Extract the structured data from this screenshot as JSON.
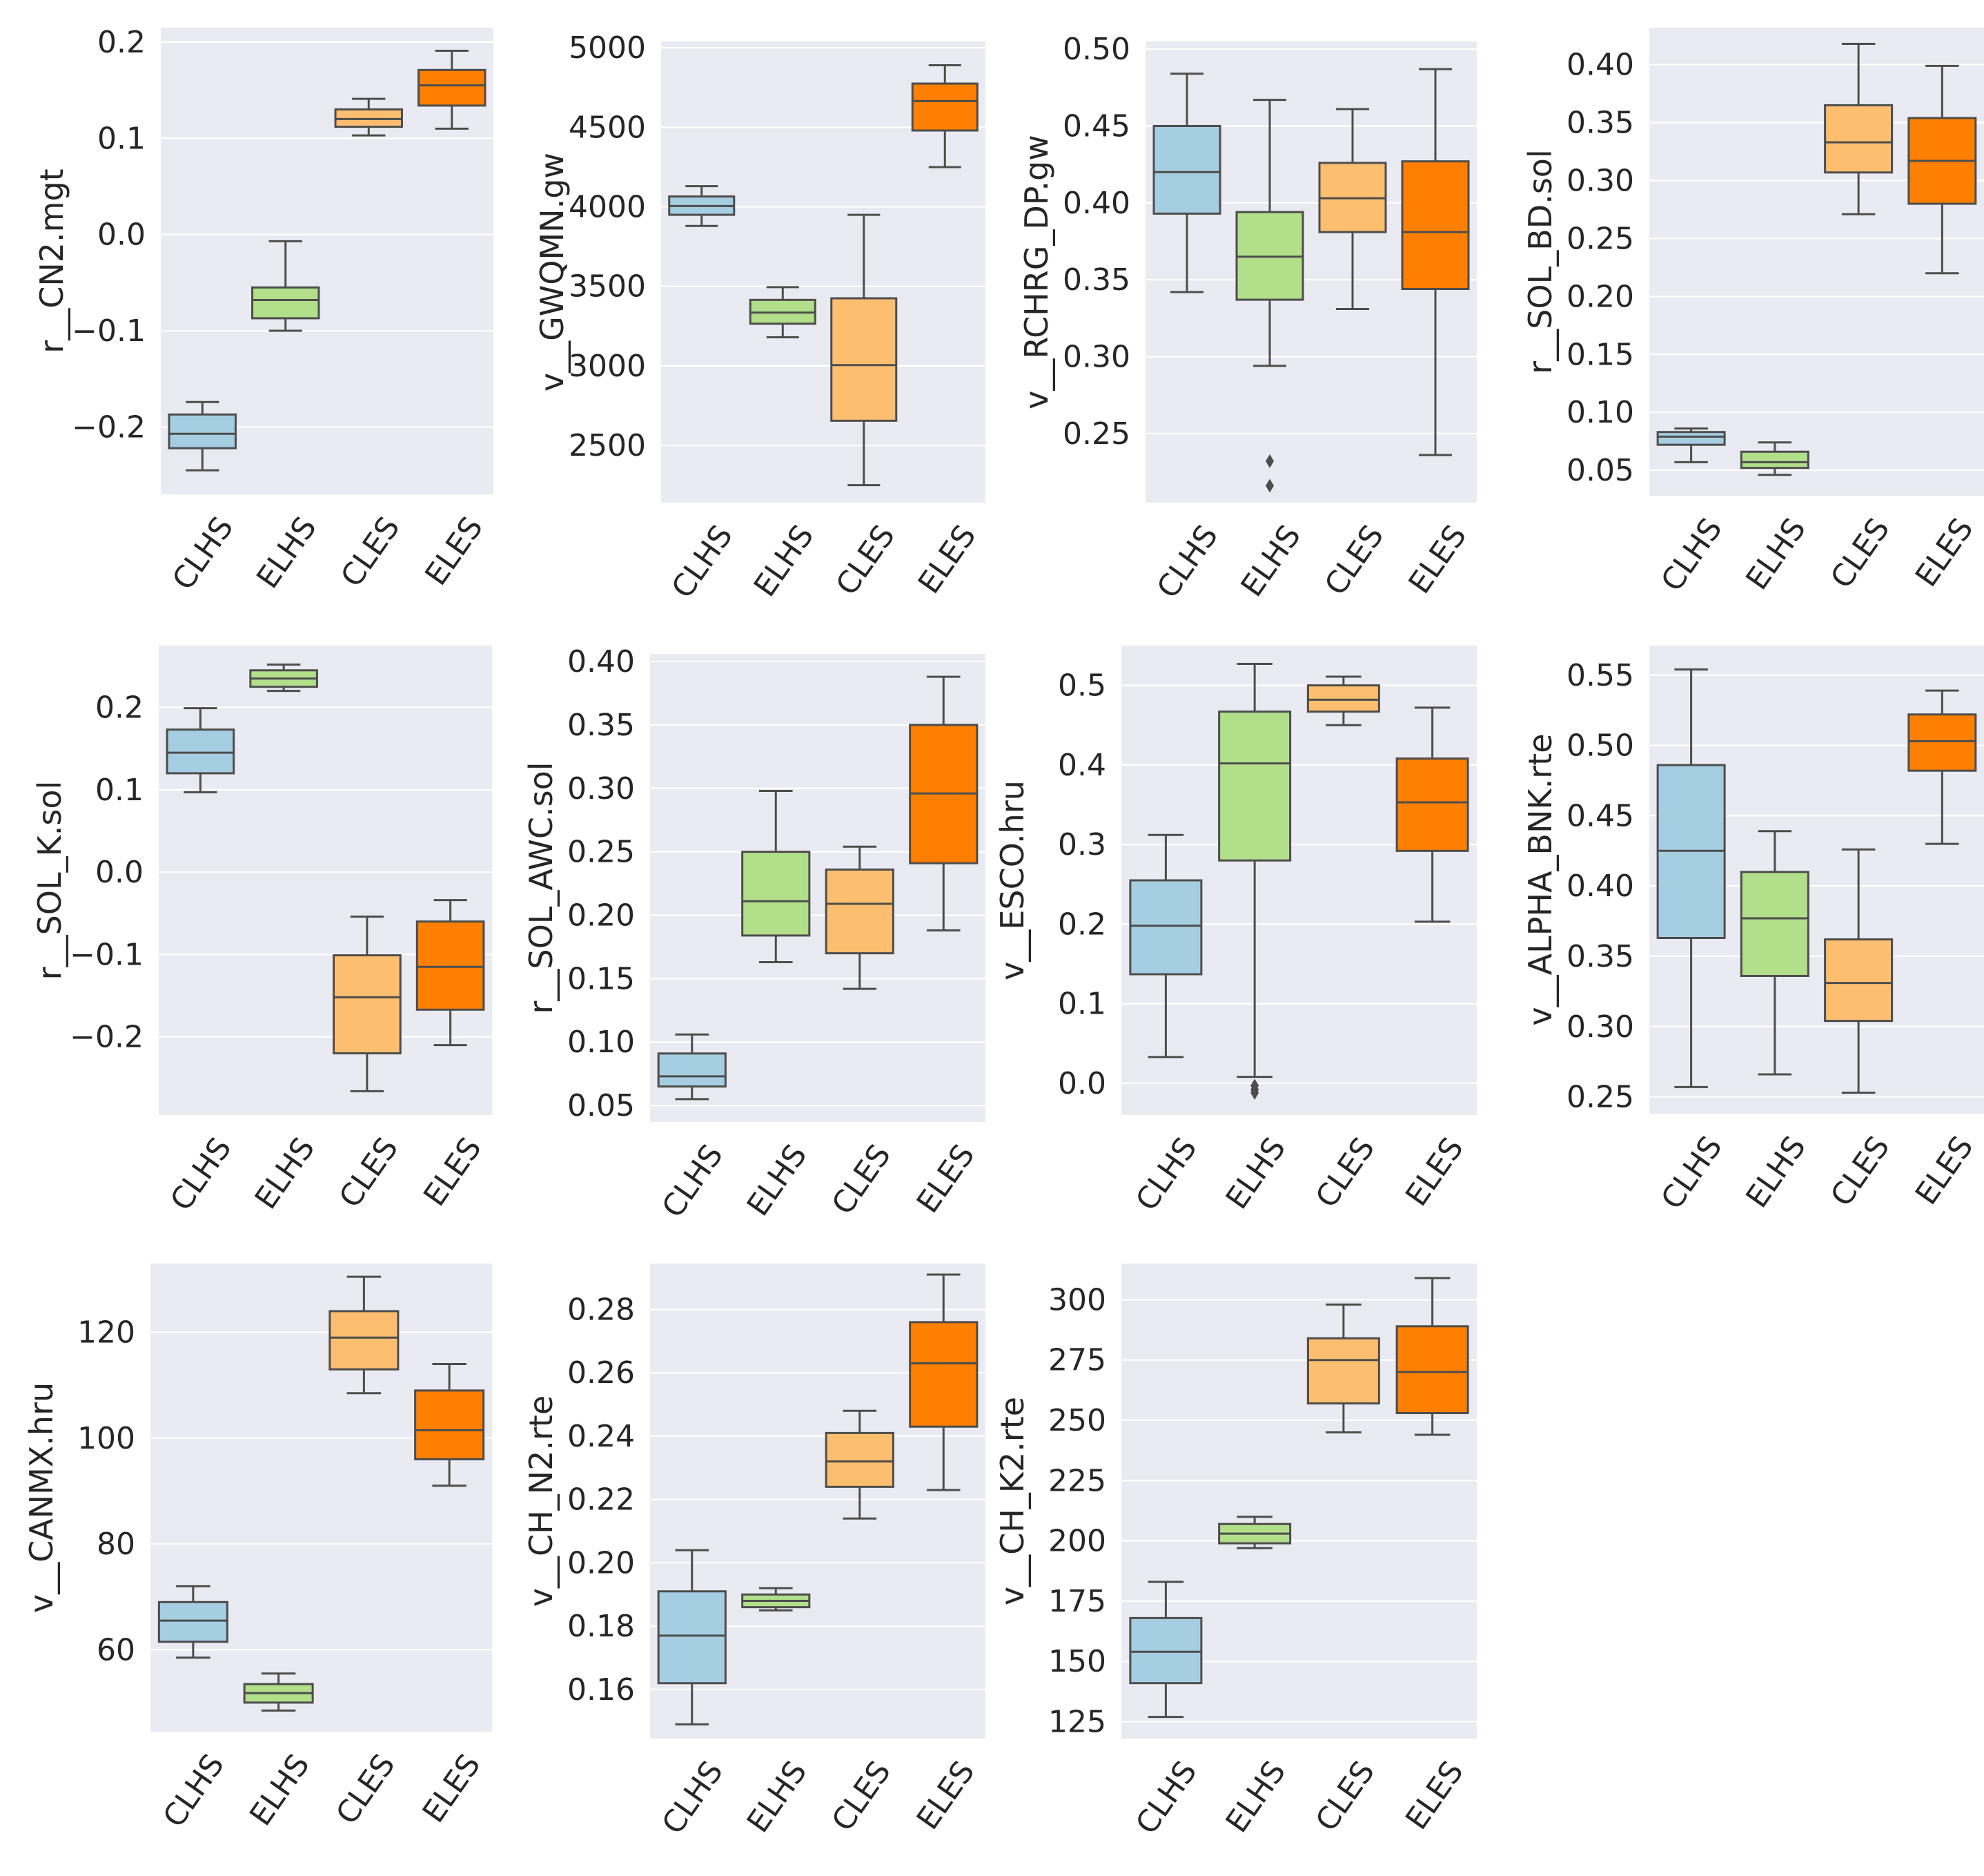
{
  "figure": {
    "background": "#ffffff",
    "panel_bg": "#eaeaf2",
    "grid_color": "#ffffff",
    "line_color": "#4d4d4d"
  },
  "chart_data": [
    {
      "type": "box",
      "ylabel": "r__CN2.mgt",
      "yticks": [
        -0.2,
        -0.1,
        0.0,
        0.1,
        0.2
      ],
      "tick_labels": [
        "−0.2",
        "−0.1",
        "0.0",
        "0.1",
        "0.2"
      ],
      "ylim": [
        -0.27,
        0.215
      ],
      "categories": [
        "CLHS",
        "ELHS",
        "CLES",
        "ELES"
      ],
      "colors": [
        "#a6cee3",
        "#b2df8a",
        "#fdbf6f",
        "#ff7f00"
      ],
      "boxes": [
        {
          "whislo": -0.245,
          "q1": -0.222,
          "med": -0.207,
          "q3": -0.187,
          "whishi": -0.174,
          "fliers": []
        },
        {
          "whislo": -0.1,
          "q1": -0.087,
          "med": -0.068,
          "q3": -0.055,
          "whishi": -0.007,
          "fliers": []
        },
        {
          "whislo": 0.103,
          "q1": 0.112,
          "med": 0.12,
          "q3": 0.13,
          "whishi": 0.141,
          "fliers": []
        },
        {
          "whislo": 0.11,
          "q1": 0.134,
          "med": 0.155,
          "q3": 0.171,
          "whishi": 0.191,
          "fliers": []
        }
      ]
    },
    {
      "type": "box",
      "ylabel": "v__GWQMN.gw",
      "yticks": [
        2500,
        3000,
        3500,
        4000,
        4500,
        5000
      ],
      "tick_labels": [
        "2500",
        "3000",
        "3500",
        "4000",
        "4500",
        "5000"
      ],
      "ylim": [
        2140,
        5040
      ],
      "categories": [
        "CLHS",
        "ELHS",
        "CLES",
        "ELES"
      ],
      "colors": [
        "#a6cee3",
        "#b2df8a",
        "#fdbf6f",
        "#ff7f00"
      ],
      "boxes": [
        {
          "whislo": 3880,
          "q1": 3950,
          "med": 4005,
          "q3": 4065,
          "whishi": 4130,
          "fliers": []
        },
        {
          "whislo": 3180,
          "q1": 3265,
          "med": 3335,
          "q3": 3415,
          "whishi": 3495,
          "fliers": []
        },
        {
          "whislo": 2250,
          "q1": 2655,
          "med": 3005,
          "q3": 3425,
          "whishi": 3950,
          "fliers": []
        },
        {
          "whislo": 4250,
          "q1": 4480,
          "med": 4665,
          "q3": 4775,
          "whishi": 4890,
          "fliers": []
        }
      ]
    },
    {
      "type": "box",
      "ylabel": "v__RCHRG_DP.gw",
      "yticks": [
        0.25,
        0.3,
        0.35,
        0.4,
        0.45,
        0.5
      ],
      "tick_labels": [
        "0.25",
        "0.30",
        "0.35",
        "0.40",
        "0.45",
        "0.50"
      ],
      "ylim": [
        0.205,
        0.505
      ],
      "categories": [
        "CLHS",
        "ELHS",
        "CLES",
        "ELES"
      ],
      "colors": [
        "#a6cee3",
        "#b2df8a",
        "#fdbf6f",
        "#ff7f00"
      ],
      "boxes": [
        {
          "whislo": 0.342,
          "q1": 0.393,
          "med": 0.42,
          "q3": 0.45,
          "whishi": 0.484,
          "fliers": []
        },
        {
          "whislo": 0.294,
          "q1": 0.337,
          "med": 0.365,
          "q3": 0.394,
          "whishi": 0.467,
          "fliers": [
            0.232,
            0.216
          ]
        },
        {
          "whislo": 0.331,
          "q1": 0.381,
          "med": 0.403,
          "q3": 0.426,
          "whishi": 0.461,
          "fliers": []
        },
        {
          "whislo": 0.236,
          "q1": 0.344,
          "med": 0.381,
          "q3": 0.427,
          "whishi": 0.487,
          "fliers": []
        }
      ]
    },
    {
      "type": "box",
      "ylabel": "r__SOL_BD.sol",
      "yticks": [
        0.05,
        0.1,
        0.15,
        0.2,
        0.25,
        0.3,
        0.35,
        0.4
      ],
      "tick_labels": [
        "0.05",
        "0.10",
        "0.15",
        "0.20",
        "0.25",
        "0.30",
        "0.35",
        "0.40"
      ],
      "ylim": [
        0.028,
        0.432
      ],
      "categories": [
        "CLHS",
        "ELHS",
        "CLES",
        "ELES"
      ],
      "colors": [
        "#a6cee3",
        "#b2df8a",
        "#fdbf6f",
        "#ff7f00"
      ],
      "boxes": [
        {
          "whislo": 0.057,
          "q1": 0.072,
          "med": 0.079,
          "q3": 0.083,
          "whishi": 0.086,
          "fliers": []
        },
        {
          "whislo": 0.046,
          "q1": 0.052,
          "med": 0.057,
          "q3": 0.066,
          "whishi": 0.074,
          "fliers": []
        },
        {
          "whislo": 0.271,
          "q1": 0.307,
          "med": 0.333,
          "q3": 0.365,
          "whishi": 0.418,
          "fliers": []
        },
        {
          "whislo": 0.22,
          "q1": 0.28,
          "med": 0.317,
          "q3": 0.354,
          "whishi": 0.399,
          "fliers": []
        }
      ]
    },
    {
      "type": "box",
      "ylabel": "r__SOL_K.sol",
      "yticks": [
        -0.2,
        -0.1,
        0.0,
        0.1,
        0.2
      ],
      "tick_labels": [
        "−0.2",
        "−0.1",
        "0.0",
        "0.1",
        "0.2"
      ],
      "ylim": [
        -0.295,
        0.275
      ],
      "categories": [
        "CLHS",
        "ELHS",
        "CLES",
        "ELES"
      ],
      "colors": [
        "#a6cee3",
        "#b2df8a",
        "#fdbf6f",
        "#ff7f00"
      ],
      "boxes": [
        {
          "whislo": 0.097,
          "q1": 0.12,
          "med": 0.145,
          "q3": 0.173,
          "whishi": 0.199,
          "fliers": []
        },
        {
          "whislo": 0.22,
          "q1": 0.225,
          "med": 0.235,
          "q3": 0.245,
          "whishi": 0.252,
          "fliers": []
        },
        {
          "whislo": -0.266,
          "q1": -0.22,
          "med": -0.152,
          "q3": -0.101,
          "whishi": -0.054,
          "fliers": []
        },
        {
          "whislo": -0.21,
          "q1": -0.167,
          "med": -0.115,
          "q3": -0.06,
          "whishi": -0.034,
          "fliers": []
        }
      ]
    },
    {
      "type": "box",
      "ylabel": "r__SOL_AWC.sol",
      "yticks": [
        0.05,
        0.1,
        0.15,
        0.2,
        0.25,
        0.3,
        0.35,
        0.4
      ],
      "tick_labels": [
        "0.05",
        "0.10",
        "0.15",
        "0.20",
        "0.25",
        "0.30",
        "0.35",
        "0.40"
      ],
      "ylim": [
        0.037,
        0.406
      ],
      "categories": [
        "CLHS",
        "ELHS",
        "CLES",
        "ELES"
      ],
      "colors": [
        "#a6cee3",
        "#b2df8a",
        "#fdbf6f",
        "#ff7f00"
      ],
      "boxes": [
        {
          "whislo": 0.055,
          "q1": 0.065,
          "med": 0.073,
          "q3": 0.091,
          "whishi": 0.106,
          "fliers": []
        },
        {
          "whislo": 0.163,
          "q1": 0.184,
          "med": 0.211,
          "q3": 0.25,
          "whishi": 0.298,
          "fliers": []
        },
        {
          "whislo": 0.142,
          "q1": 0.17,
          "med": 0.209,
          "q3": 0.236,
          "whishi": 0.254,
          "fliers": []
        },
        {
          "whislo": 0.188,
          "q1": 0.241,
          "med": 0.296,
          "q3": 0.35,
          "whishi": 0.388,
          "fliers": []
        }
      ]
    },
    {
      "type": "box",
      "ylabel": "v__ESCO.hru",
      "yticks": [
        0.0,
        0.1,
        0.2,
        0.3,
        0.4,
        0.5
      ],
      "tick_labels": [
        "0.0",
        "0.1",
        "0.2",
        "0.3",
        "0.4",
        "0.5"
      ],
      "ylim": [
        -0.04,
        0.55
      ],
      "categories": [
        "CLHS",
        "ELHS",
        "CLES",
        "ELES"
      ],
      "colors": [
        "#a6cee3",
        "#b2df8a",
        "#fdbf6f",
        "#ff7f00"
      ],
      "boxes": [
        {
          "whislo": 0.033,
          "q1": 0.137,
          "med": 0.198,
          "q3": 0.255,
          "whishi": 0.312,
          "fliers": []
        },
        {
          "whislo": 0.008,
          "q1": 0.28,
          "med": 0.402,
          "q3": 0.467,
          "whishi": 0.527,
          "fliers": [
            -0.003,
            -0.008,
            -0.012
          ]
        },
        {
          "whislo": 0.45,
          "q1": 0.467,
          "med": 0.482,
          "q3": 0.5,
          "whishi": 0.511,
          "fliers": []
        },
        {
          "whislo": 0.203,
          "q1": 0.292,
          "med": 0.353,
          "q3": 0.408,
          "whishi": 0.472,
          "fliers": []
        }
      ]
    },
    {
      "type": "box",
      "ylabel": "v__ALPHA_BNK.rte",
      "yticks": [
        0.25,
        0.3,
        0.35,
        0.4,
        0.45,
        0.5,
        0.55
      ],
      "tick_labels": [
        "0.25",
        "0.30",
        "0.35",
        "0.40",
        "0.45",
        "0.50",
        "0.55"
      ],
      "ylim": [
        0.238,
        0.571
      ],
      "categories": [
        "CLHS",
        "ELHS",
        "CLES",
        "ELES"
      ],
      "colors": [
        "#a6cee3",
        "#b2df8a",
        "#fdbf6f",
        "#ff7f00"
      ],
      "boxes": [
        {
          "whislo": 0.257,
          "q1": 0.363,
          "med": 0.425,
          "q3": 0.486,
          "whishi": 0.554,
          "fliers": []
        },
        {
          "whislo": 0.266,
          "q1": 0.336,
          "med": 0.377,
          "q3": 0.41,
          "whishi": 0.439,
          "fliers": []
        },
        {
          "whislo": 0.253,
          "q1": 0.304,
          "med": 0.331,
          "q3": 0.362,
          "whishi": 0.426,
          "fliers": []
        },
        {
          "whislo": 0.43,
          "q1": 0.482,
          "med": 0.503,
          "q3": 0.522,
          "whishi": 0.539,
          "fliers": []
        }
      ]
    },
    {
      "type": "box",
      "ylabel": "v__CANMX.hru",
      "yticks": [
        60,
        80,
        100,
        120
      ],
      "tick_labels": [
        "60",
        "80",
        "100",
        "120"
      ],
      "ylim": [
        44.5,
        133.0
      ],
      "categories": [
        "CLHS",
        "ELHS",
        "CLES",
        "ELES"
      ],
      "colors": [
        "#a6cee3",
        "#b2df8a",
        "#fdbf6f",
        "#ff7f00"
      ],
      "boxes": [
        {
          "whislo": 58.5,
          "q1": 61.5,
          "med": 65.5,
          "q3": 69.0,
          "whishi": 72.0,
          "fliers": []
        },
        {
          "whislo": 48.5,
          "q1": 50.0,
          "med": 51.8,
          "q3": 53.5,
          "whishi": 55.5,
          "fliers": []
        },
        {
          "whislo": 108.5,
          "q1": 113.0,
          "med": 119.0,
          "q3": 124.0,
          "whishi": 130.5,
          "fliers": []
        },
        {
          "whislo": 91.0,
          "q1": 96.0,
          "med": 101.5,
          "q3": 109.0,
          "whishi": 114.0,
          "fliers": []
        }
      ]
    },
    {
      "type": "box",
      "ylabel": "v__CH_N2.rte",
      "yticks": [
        0.16,
        0.18,
        0.2,
        0.22,
        0.24,
        0.26,
        0.28
      ],
      "tick_labels": [
        "0.16",
        "0.18",
        "0.20",
        "0.22",
        "0.24",
        "0.26",
        "0.28"
      ],
      "ylim": [
        0.1445,
        0.2945
      ],
      "categories": [
        "CLHS",
        "ELHS",
        "CLES",
        "ELES"
      ],
      "colors": [
        "#a6cee3",
        "#b2df8a",
        "#fdbf6f",
        "#ff7f00"
      ],
      "boxes": [
        {
          "whislo": 0.149,
          "q1": 0.162,
          "med": 0.177,
          "q3": 0.191,
          "whishi": 0.204,
          "fliers": []
        },
        {
          "whislo": 0.185,
          "q1": 0.186,
          "med": 0.188,
          "q3": 0.19,
          "whishi": 0.192,
          "fliers": []
        },
        {
          "whislo": 0.214,
          "q1": 0.224,
          "med": 0.232,
          "q3": 0.241,
          "whishi": 0.248,
          "fliers": []
        },
        {
          "whislo": 0.223,
          "q1": 0.243,
          "med": 0.263,
          "q3": 0.276,
          "whishi": 0.291,
          "fliers": []
        }
      ]
    },
    {
      "type": "box",
      "ylabel": "v__CH_K2.rte",
      "yticks": [
        125,
        150,
        175,
        200,
        225,
        250,
        275,
        300
      ],
      "tick_labels": [
        "125",
        "150",
        "175",
        "200",
        "225",
        "250",
        "275",
        "300"
      ],
      "ylim": [
        118,
        315
      ],
      "categories": [
        "CLHS",
        "ELHS",
        "CLES",
        "ELES"
      ],
      "colors": [
        "#a6cee3",
        "#b2df8a",
        "#fdbf6f",
        "#ff7f00"
      ],
      "boxes": [
        {
          "whislo": 127,
          "q1": 141,
          "med": 154,
          "q3": 168,
          "whishi": 183,
          "fliers": []
        },
        {
          "whislo": 197,
          "q1": 199,
          "med": 203,
          "q3": 207,
          "whishi": 210,
          "fliers": []
        },
        {
          "whislo": 245,
          "q1": 257,
          "med": 275,
          "q3": 284,
          "whishi": 298,
          "fliers": []
        },
        {
          "whislo": 244,
          "q1": 253,
          "med": 270,
          "q3": 289,
          "whishi": 309,
          "fliers": []
        }
      ]
    }
  ]
}
